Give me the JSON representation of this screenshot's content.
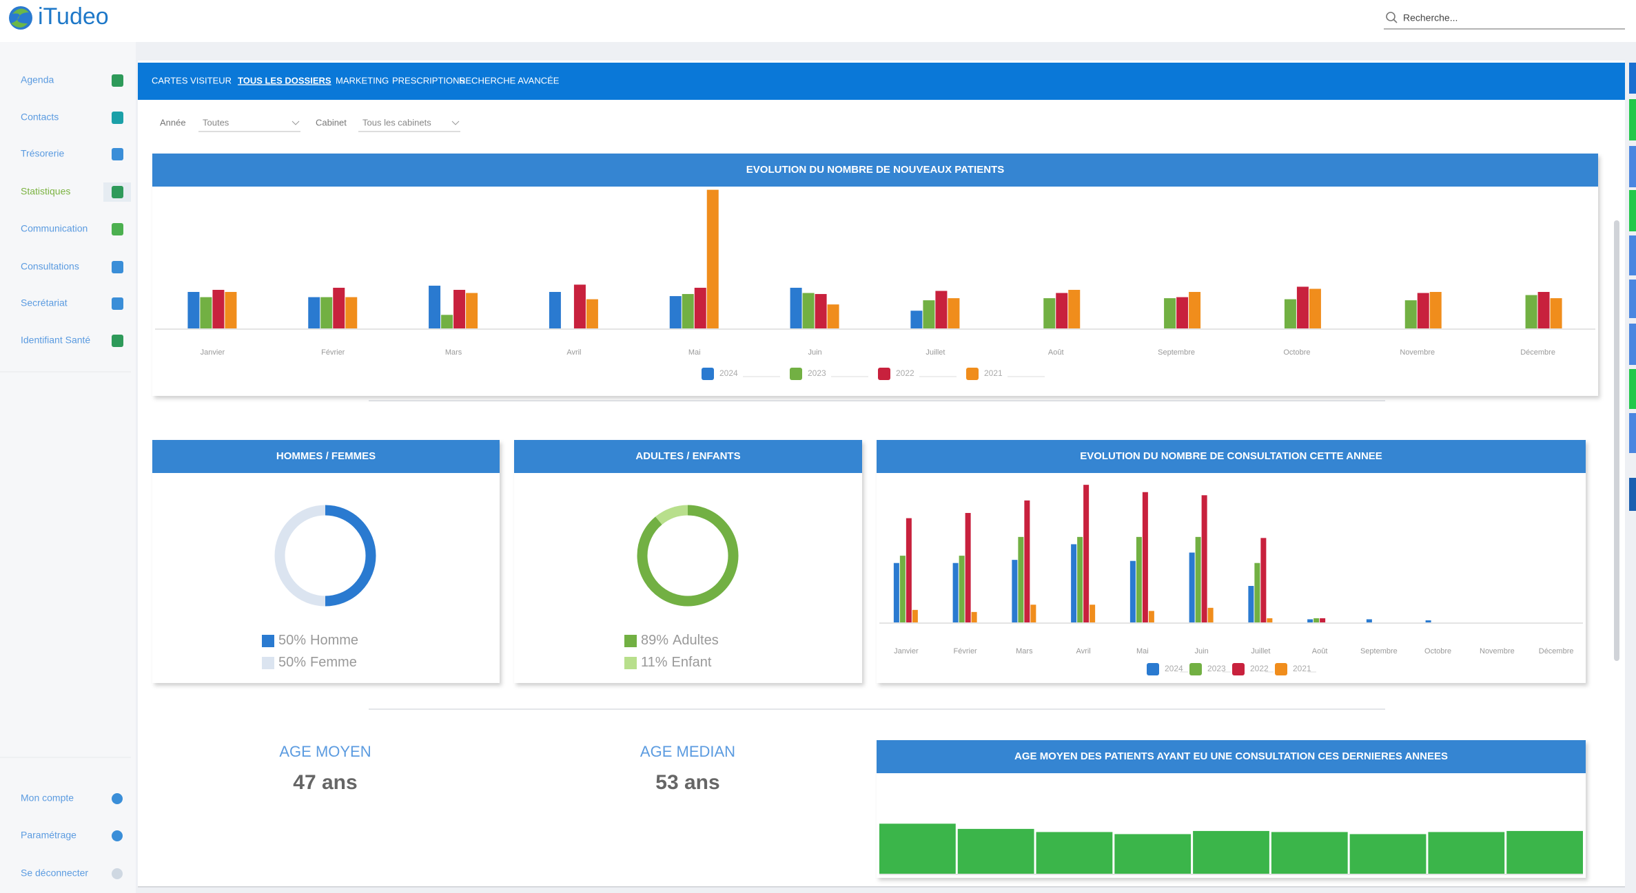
{
  "header": {
    "logo": "iTudeo",
    "search_placeholder": "Recherche..."
  },
  "sidebar": {
    "items": [
      "Agenda",
      "Contacts",
      "Trésorerie",
      "Statistiques",
      "Communication",
      "Consultations",
      "Secrétariat",
      "Identifiant Santé"
    ],
    "active": 3,
    "bottom_items": [
      "Mon compte",
      "Paramétrage",
      "Se déconnecter"
    ]
  },
  "tabs": {
    "items": [
      "CARTES VISITEUR",
      "TOUS LES DOSSIERS",
      "MARKETING",
      "PRESCRIPTIONS",
      "RECHERCHE AVANCÉE"
    ],
    "active": 1
  },
  "filters": [
    {
      "label": "Année",
      "value": "Toutes"
    },
    {
      "label": "Cabinet",
      "value": "Tous les cabinets"
    }
  ],
  "chart_data": [
    {
      "type": "bar",
      "title": "EVOLUTION DU NOMBRE DE NOUVEAUX PATIENTS",
      "categories": [
        "Janvier",
        "Février",
        "Mars",
        "Avril",
        "Mai",
        "Juin",
        "Juillet",
        "Août",
        "Septembre",
        "Octobre",
        "Novembre",
        "Décembre"
      ],
      "series": [
        {
          "name": "2024",
          "color": "#2a7ad0",
          "values": [
            35,
            30,
            41,
            35,
            31,
            39,
            17,
            null,
            null,
            null,
            null,
            null
          ]
        },
        {
          "name": "2023",
          "color": "#72b043",
          "values": [
            30,
            30,
            13,
            null,
            33,
            34,
            27,
            29,
            29,
            28,
            27,
            32
          ]
        },
        {
          "name": "2022",
          "color": "#c8213d",
          "values": [
            37,
            39,
            37,
            42,
            39,
            33,
            36,
            34,
            30,
            40,
            34,
            35
          ]
        },
        {
          "name": "2021",
          "color": "#f08d1c",
          "values": [
            35,
            30,
            34,
            28,
            133,
            23,
            29,
            37,
            35,
            38,
            35,
            29
          ]
        }
      ]
    },
    {
      "type": "pie",
      "title": "HOMMES / FEMMES",
      "categories": [
        "Homme",
        "Femme"
      ],
      "values": [
        50,
        50
      ],
      "value_labels": [
        "50%",
        "50%"
      ],
      "colors": [
        "#2a7ad0",
        "#dbe4f0"
      ]
    },
    {
      "type": "pie",
      "title": "ADULTES / ENFANTS",
      "categories": [
        "Adultes",
        "Enfant"
      ],
      "values": [
        89,
        11
      ],
      "value_labels": [
        "89%",
        "11%"
      ],
      "colors": [
        "#72b043",
        "#b8df8c"
      ]
    },
    {
      "type": "bar",
      "title": "EVOLUTION DU NOMBRE DE CONSULTATION CETTE ANNEE",
      "categories": [
        "Janvier",
        "Février",
        "Mars",
        "Avril",
        "Mai",
        "Juin",
        "Juillet",
        "Août",
        "Septembre",
        "Octobre",
        "Novembre",
        "Décembre"
      ],
      "series": [
        {
          "name": "2024",
          "color": "#2a7ad0",
          "values": [
            57,
            57,
            60,
            75,
            59,
            67,
            35,
            3,
            3,
            2,
            null,
            null
          ]
        },
        {
          "name": "2023",
          "color": "#72b043",
          "values": [
            64,
            64,
            82,
            82,
            82,
            82,
            57,
            4,
            null,
            null,
            null,
            null
          ]
        },
        {
          "name": "2022",
          "color": "#c8213d",
          "values": [
            100,
            105,
            117,
            132,
            125,
            122,
            81,
            4,
            null,
            null,
            null,
            null
          ]
        },
        {
          "name": "2021",
          "color": "#f08d1c",
          "values": [
            12,
            10,
            17,
            17,
            11,
            14,
            4,
            null,
            null,
            null,
            null,
            null
          ]
        }
      ]
    },
    {
      "type": "bar",
      "title": "AGE MOYEN DES PATIENTS AYANT EU UNE CONSULTATION CES DERNIERES ANNEES",
      "categories": [
        null,
        null,
        null,
        null,
        null,
        null,
        null,
        null,
        null
      ],
      "values": [
        48,
        43,
        40,
        38,
        41,
        40,
        38,
        40,
        41
      ],
      "color": "#3bb54a"
    }
  ],
  "stats": [
    {
      "label": "AGE MOYEN",
      "value": "47 ans"
    },
    {
      "label": "AGE MEDIAN",
      "value": "53 ans"
    }
  ]
}
